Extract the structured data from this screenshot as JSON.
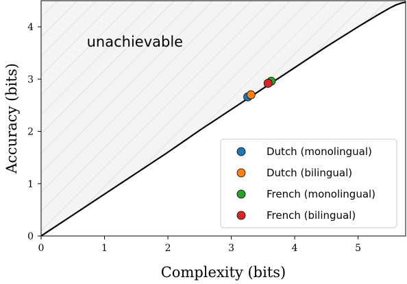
{
  "chart_data": {
    "type": "scatter",
    "xlabel": "Complexity (bits)",
    "ylabel": "Accuracy (bits)",
    "xlim": [
      0,
      5.75
    ],
    "ylim": [
      0,
      4.5
    ],
    "xticks": [
      0,
      1,
      2,
      3,
      4,
      5
    ],
    "yticks": [
      0,
      1,
      2,
      3,
      4
    ],
    "region_label": "unachievable",
    "legend_position": "lower-right",
    "frontier": {
      "x": [
        0.0,
        0.5,
        1.0,
        1.5,
        2.0,
        2.5,
        3.0,
        3.5,
        4.0,
        4.5,
        5.0,
        5.3,
        5.5,
        5.6,
        5.7,
        5.75
      ],
      "y": [
        0.0,
        0.4,
        0.8,
        1.2,
        1.6,
        2.02,
        2.42,
        2.82,
        3.22,
        3.62,
        4.0,
        4.22,
        4.36,
        4.42,
        4.46,
        4.47
      ]
    },
    "series": [
      {
        "name": "Dutch (monolingual)",
        "color": "#1f77b4",
        "x": [
          3.26
        ],
        "y": [
          2.66
        ]
      },
      {
        "name": "Dutch (bilingual)",
        "color": "#ff7f0e",
        "x": [
          3.31
        ],
        "y": [
          2.7
        ]
      },
      {
        "name": "French (monolingual)",
        "color": "#2ca02c",
        "x": [
          3.63
        ],
        "y": [
          2.96
        ]
      },
      {
        "name": "French (bilingual)",
        "color": "#d62728",
        "x": [
          3.58
        ],
        "y": [
          2.92
        ]
      }
    ]
  }
}
